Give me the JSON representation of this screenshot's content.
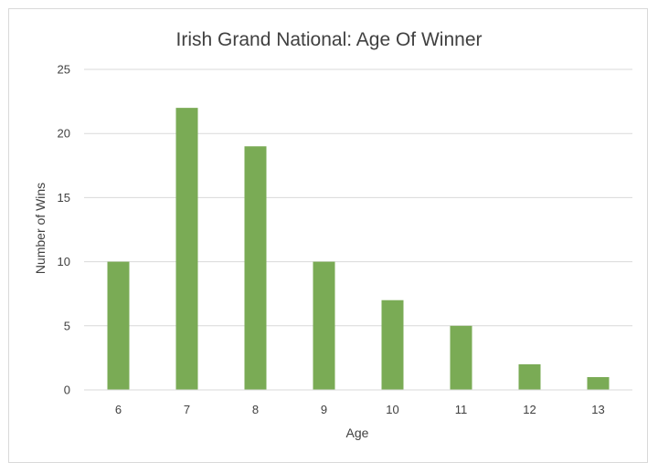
{
  "chart_data": {
    "type": "bar",
    "title": "Irish Grand National: Age Of Winner",
    "xlabel": "Age",
    "ylabel": "Number of Wins",
    "categories": [
      "6",
      "7",
      "8",
      "9",
      "10",
      "11",
      "12",
      "13"
    ],
    "values": [
      10,
      22,
      19,
      10,
      7,
      5,
      2,
      1
    ],
    "ylim": [
      0,
      25
    ],
    "yticks": [
      "0",
      "5",
      "10",
      "15",
      "20",
      "25"
    ],
    "grid": true,
    "bar_color": "#7aab55",
    "legend": "none"
  }
}
